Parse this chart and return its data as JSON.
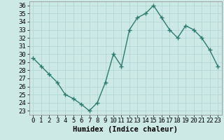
{
  "x": [
    0,
    1,
    2,
    3,
    4,
    5,
    6,
    7,
    8,
    9,
    10,
    11,
    12,
    13,
    14,
    15,
    16,
    17,
    18,
    19,
    20,
    21,
    22,
    23
  ],
  "y": [
    29.5,
    28.5,
    27.5,
    26.5,
    25.0,
    24.5,
    23.8,
    23.0,
    24.0,
    26.5,
    30.0,
    28.5,
    33.0,
    34.5,
    35.0,
    36.0,
    34.5,
    33.0,
    32.0,
    33.5,
    33.0,
    32.0,
    30.5,
    28.5
  ],
  "line_color": "#2d7a6e",
  "marker": "+",
  "marker_size": 4,
  "bg_color": "#cce9e5",
  "grid_color": "#b0d4d0",
  "xlabel": "Humidex (Indice chaleur)",
  "ylabel_ticks": [
    23,
    24,
    25,
    26,
    27,
    28,
    29,
    30,
    31,
    32,
    33,
    34,
    35,
    36
  ],
  "ylim": [
    22.5,
    36.5
  ],
  "xlim": [
    -0.5,
    23.5
  ],
  "xticks": [
    0,
    1,
    2,
    3,
    4,
    5,
    6,
    7,
    8,
    9,
    10,
    11,
    12,
    13,
    14,
    15,
    16,
    17,
    18,
    19,
    20,
    21,
    22,
    23
  ],
  "xlabel_fontsize": 7.5,
  "tick_fontsize": 6.5,
  "linewidth": 1.0,
  "marker_color": "#2d7a6e"
}
